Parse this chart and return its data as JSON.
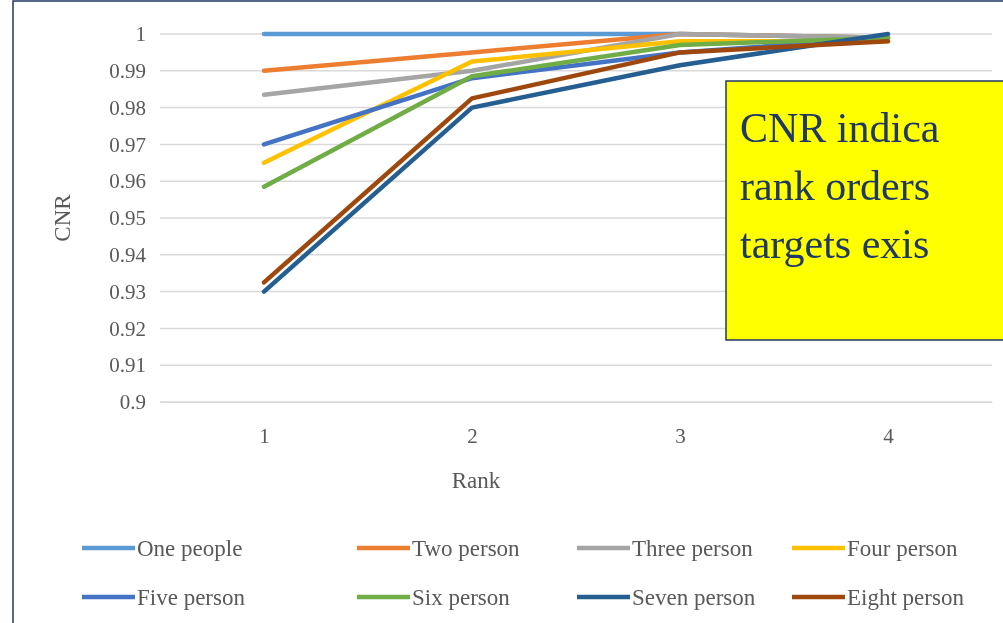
{
  "chart_data": {
    "type": "line",
    "xlabel": "Rank",
    "ylabel": "CNR",
    "categories": [
      "1",
      "2",
      "3",
      "4"
    ],
    "ylim": [
      0.9,
      1
    ],
    "yticks": [
      0.9,
      0.91,
      0.92,
      0.93,
      0.94,
      0.95,
      0.96,
      0.97,
      0.98,
      0.99,
      1
    ],
    "grid": "y",
    "legend": "bottom",
    "marker": "none",
    "line_style": "solid",
    "series": [
      {
        "name": "One people",
        "color": "#5b9bd5",
        "values": [
          1,
          1,
          1,
          0.999
        ]
      },
      {
        "name": "Two person",
        "color": "#ed7d31",
        "values": [
          0.99,
          0.995,
          1,
          0.999
        ]
      },
      {
        "name": "Three person",
        "color": "#a5a5a5",
        "values": [
          0.9835,
          0.99,
          1,
          0.999
        ]
      },
      {
        "name": "Four person",
        "color": "#ffc000",
        "values": [
          0.965,
          0.9925,
          0.998,
          0.998
        ]
      },
      {
        "name": "Five person",
        "color": "#4472c4",
        "values": [
          0.97,
          0.988,
          0.995,
          0.999
        ]
      },
      {
        "name": "Six person",
        "color": "#70ad47",
        "values": [
          0.9585,
          0.9885,
          0.997,
          0.999
        ]
      },
      {
        "name": "Seven person",
        "color": "#255e91",
        "values": [
          0.93,
          0.98,
          0.9915,
          1
        ]
      },
      {
        "name": "Eight person",
        "color": "#9e480e",
        "values": [
          0.9325,
          0.9825,
          0.995,
          0.998
        ]
      }
    ],
    "annotations": [
      "CNR indica\nrank orders\ntargets exis"
    ]
  }
}
